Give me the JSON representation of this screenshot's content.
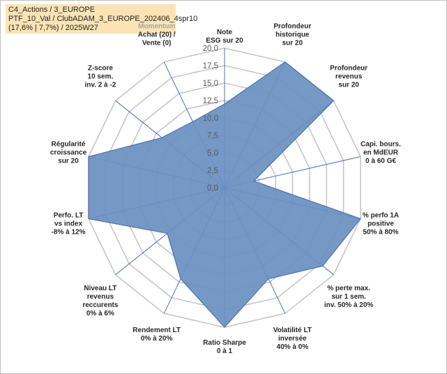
{
  "header": {
    "line1": "C4_Actions / 3_EUROPE",
    "line2": "PTF_10_Val / ClubADAM_3_EUROPE_202406_4spr10",
    "line3": "(17,6% | 7,7%) / 2025W27"
  },
  "colors": {
    "fill": "#6a8fc0",
    "stroke": "#4a74b0",
    "grid": "#c6c6c6",
    "spoke": "#4472c4",
    "highlight_label": "#a5a5a5"
  },
  "chart_data": {
    "type": "radar",
    "title": "",
    "rmin": 0,
    "rmax": 20,
    "ticks": [
      "0,0",
      "2,5",
      "5,0",
      "7,5",
      "10,0",
      "12,5",
      "15,0",
      "17,5",
      "20,0"
    ],
    "tick_values": [
      0,
      2.5,
      5,
      7.5,
      10,
      12.5,
      15,
      17.5,
      20
    ],
    "axes": [
      {
        "lines": [
          "Note",
          "ESG sur 20"
        ],
        "value": 12.0
      },
      {
        "lines": [
          "Profondeur",
          "historique",
          "sur 20"
        ],
        "value": 20.0
      },
      {
        "lines": [
          "Profondeur",
          "revenus",
          "sur 20"
        ],
        "value": 20.0
      },
      {
        "lines": [
          "Capi. bours.",
          "en MdEUR",
          "0 à 60 G€"
        ],
        "value": 4.3
      },
      {
        "lines": [
          "% perfo 1A",
          "positive",
          "50% à 80%"
        ],
        "value": 20.0
      },
      {
        "lines": [
          "% perte max.",
          "sur 1 sem.",
          "inv. 50% à 20%"
        ],
        "value": 18.0
      },
      {
        "lines": [
          "Volatilité LT",
          "inversée",
          "40% à 0%"
        ],
        "value": 14.5
      },
      {
        "lines": [
          "Ratio Sharpe",
          "0 à 1"
        ],
        "value": 20.0
      },
      {
        "lines": [
          "Rendement LT",
          "0% à 20%"
        ],
        "value": 14.5
      },
      {
        "lines": [
          "Niveau LT",
          "revenus",
          "reccurents",
          "0% à 6%"
        ],
        "value": 10.5
      },
      {
        "lines": [
          "Perfo. LT",
          "vs index",
          "-8% à 12%"
        ],
        "value": 20.0
      },
      {
        "lines": [
          "Régularité",
          "croissance",
          "sur 20"
        ],
        "value": 20.0
      },
      {
        "lines": [
          "Z-score",
          "10 sem.",
          "inv. 2 à -2"
        ],
        "value": 11.5
      },
      {
        "lines": [
          "Momentum",
          "Achat (20) /",
          "Vente (0)"
        ],
        "value": 10.5,
        "highlight_first_line": true
      }
    ]
  }
}
